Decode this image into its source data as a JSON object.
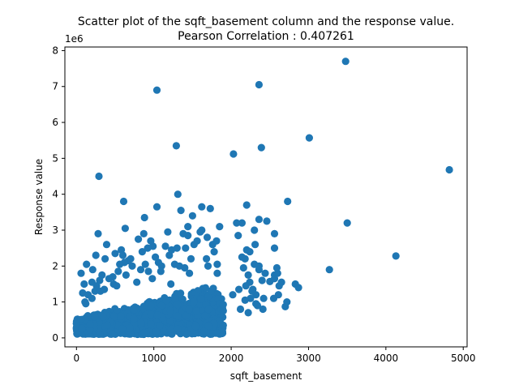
{
  "chart_data": {
    "type": "scatter",
    "title": "Scatter plot of the sqft_basement column and the response value.",
    "subtitle": "Pearson Correlation : 0.407261",
    "xlabel": "sqft_basement",
    "ylabel": "Response value",
    "y_scale_label": "1e6",
    "xlim": [
      -150,
      5050
    ],
    "ylim": [
      -0.25,
      8.1
    ],
    "x_ticks": [
      0,
      1000,
      2000,
      3000,
      4000,
      5000
    ],
    "y_ticks": [
      0,
      1,
      2,
      3,
      4,
      5,
      6,
      7,
      8
    ],
    "grid": false,
    "marker_color": "#1f77b4",
    "series": [
      {
        "x": [
          3480,
          1040,
          2360,
          1290,
          3010,
          2030,
          2390,
          4820,
          290,
          2200,
          610,
          1310,
          2730,
          1040,
          1620,
          3500,
          2070,
          2360,
          4130,
          3270,
          2870,
          2830,
          2560,
          2600,
          2500,
          2610,
          2700,
          2460,
          2300,
          2140,
          2200,
          2560,
          2560,
          2590,
          2650,
          2720,
          2620,
          2550,
          2560,
          2300,
          2310,
          2240,
          2360,
          2440,
          2240,
          2280,
          2320,
          2420,
          2180,
          2090,
          2140,
          2160,
          2220,
          2360,
          2400,
          2100,
          2190,
          2250,
          2320,
          2410,
          2180,
          2270,
          2340,
          2120,
          2220,
          2020,
          1810,
          1820,
          1850,
          1730,
          1760,
          1780,
          1820,
          1600,
          1680,
          1690,
          1700,
          1620,
          1500,
          1560,
          1440,
          1350,
          1410,
          1480,
          1440,
          1460,
          1520,
          1380,
          1330,
          1300,
          1180,
          1060,
          990,
          960,
          890,
          850,
          930,
          1020,
          1100,
          1200,
          1230,
          1270,
          1220,
          1400,
          1150,
          1090,
          980,
          920,
          880,
          870,
          800,
          720,
          670,
          640,
          580,
          600,
          630,
          700,
          780,
          830,
          620,
          540,
          560,
          500,
          470,
          390,
          370,
          330,
          280,
          250,
          210,
          130,
          200,
          60,
          80,
          100,
          110,
          150,
          240,
          260,
          300,
          360,
          420,
          480,
          520,
          310,
          200,
          120
        ],
        "y": [
          7.7,
          6.9,
          7.05,
          5.35,
          5.57,
          5.12,
          5.3,
          4.68,
          4.5,
          3.7,
          3.8,
          4.0,
          3.8,
          3.65,
          3.65,
          3.2,
          3.2,
          3.3,
          2.28,
          1.9,
          1.4,
          1.5,
          1.75,
          1.8,
          1.57,
          1.2,
          0.87,
          3.25,
          3.0,
          3.2,
          2.45,
          2.9,
          2.5,
          1.95,
          1.55,
          1.0,
          1.45,
          1.1,
          1.65,
          2.05,
          2.6,
          2.4,
          2.0,
          1.8,
          1.55,
          1.35,
          1.2,
          1.1,
          2.2,
          2.85,
          2.25,
          1.95,
          1.75,
          1.9,
          1.6,
          1.35,
          1.45,
          1.1,
          0.95,
          0.8,
          1.05,
          1.3,
          0.9,
          0.8,
          0.7,
          1.2,
          2.7,
          2.05,
          3.1,
          3.6,
          2.6,
          2.4,
          1.8,
          2.95,
          2.2,
          2.8,
          2.0,
          3.0,
          3.4,
          2.7,
          3.1,
          3.55,
          2.5,
          2.2,
          2.85,
          1.8,
          2.6,
          2.9,
          2.0,
          2.5,
          2.95,
          2.1,
          2.55,
          2.7,
          2.05,
          2.4,
          1.85,
          2.25,
          2.0,
          2.3,
          2.45,
          2.05,
          1.5,
          1.95,
          2.55,
          1.85,
          1.65,
          2.5,
          3.35,
          2.9,
          2.75,
          2.0,
          2.15,
          1.75,
          2.45,
          2.3,
          3.05,
          2.2,
          1.55,
          1.9,
          2.1,
          1.85,
          2.05,
          2.35,
          1.7,
          2.6,
          2.2,
          1.75,
          2.9,
          2.3,
          1.9,
          2.05,
          1.55,
          1.8,
          1.25,
          1.5,
          1.0,
          1.2,
          1.3,
          1.45,
          1.6,
          1.35,
          1.65,
          1.5,
          1.45,
          1.3,
          1.1,
          0.95
        ]
      }
    ]
  }
}
